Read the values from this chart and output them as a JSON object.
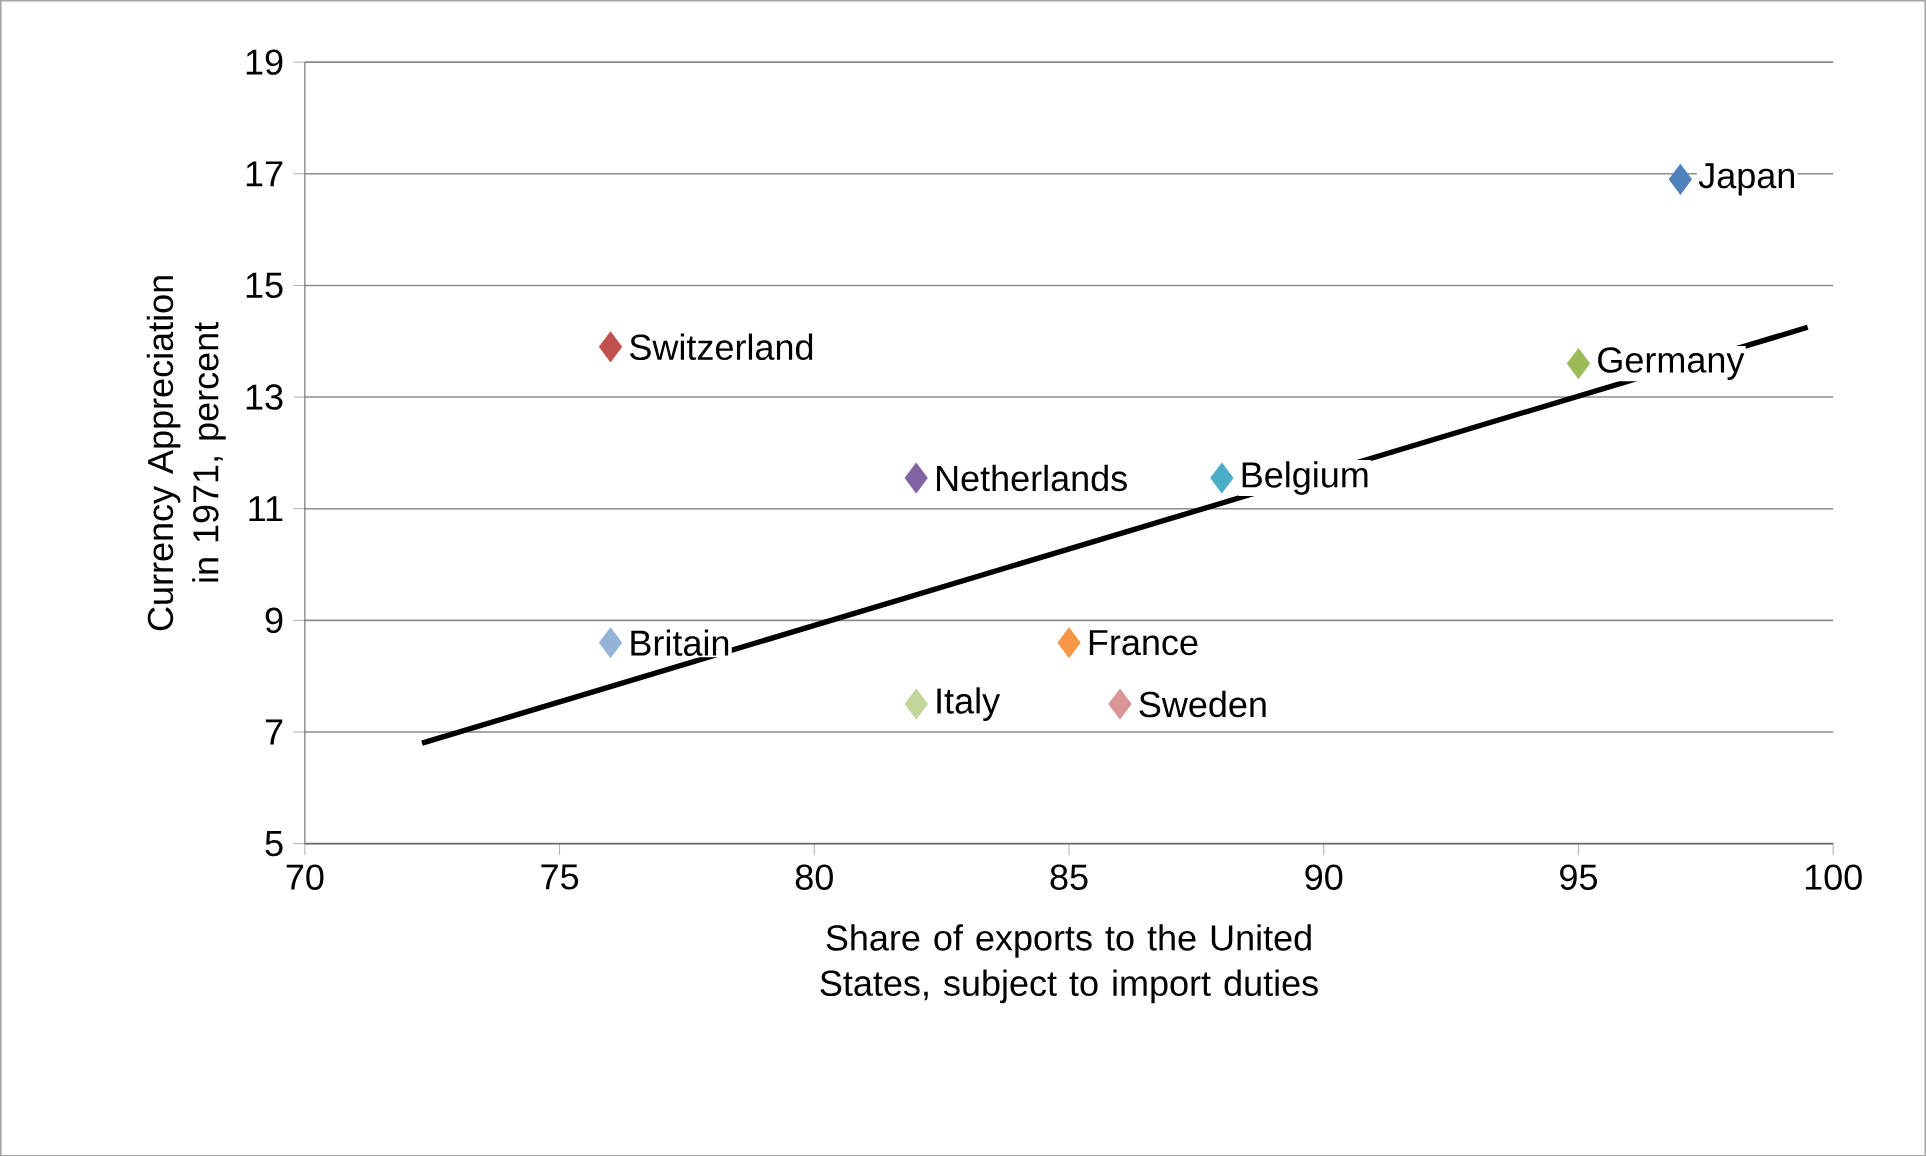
{
  "chart_data": {
    "type": "scatter",
    "xlabel": "Share of exports to the United States, subject to import duties",
    "ylabel": "Currency  Appreciation in 1971, percent",
    "xlim": [
      70,
      100
    ],
    "xticks": [
      70,
      75,
      80,
      85,
      90,
      95,
      100
    ],
    "ylim": [
      5,
      19
    ],
    "yticks": [
      5,
      7,
      9,
      11,
      13,
      15,
      17,
      19
    ],
    "grid": "y",
    "marker": "diamond",
    "series": [
      {
        "name": "Japan",
        "color": "#4f81bd",
        "x": [
          97
        ],
        "values": [
          16.9
        ]
      },
      {
        "name": "Switzerland",
        "color": "#c0504d",
        "x": [
          76
        ],
        "values": [
          13.9
        ]
      },
      {
        "name": "Germany",
        "color": "#9bbb59",
        "x": [
          95
        ],
        "values": [
          13.6
        ]
      },
      {
        "name": "Netherlands",
        "color": "#8064a2",
        "x": [
          82
        ],
        "values": [
          11.55
        ]
      },
      {
        "name": "Belgium",
        "color": "#4bacc6",
        "x": [
          88
        ],
        "values": [
          11.55
        ]
      },
      {
        "name": "Britain",
        "color": "#95b3d7",
        "x": [
          76
        ],
        "values": [
          8.6
        ]
      },
      {
        "name": "France",
        "color": "#f79646",
        "x": [
          85
        ],
        "values": [
          8.6
        ]
      },
      {
        "name": "Italy",
        "color": "#c3d69b",
        "x": [
          82
        ],
        "values": [
          7.5
        ]
      },
      {
        "name": "Sweden",
        "color": "#d99694",
        "x": [
          86
        ],
        "values": [
          7.5
        ]
      },
      {
        "type": "line",
        "color": "#000000",
        "marker": "none",
        "x": [
          72.3,
          99.5
        ],
        "values": [
          6.8,
          14.25
        ]
      }
    ]
  }
}
